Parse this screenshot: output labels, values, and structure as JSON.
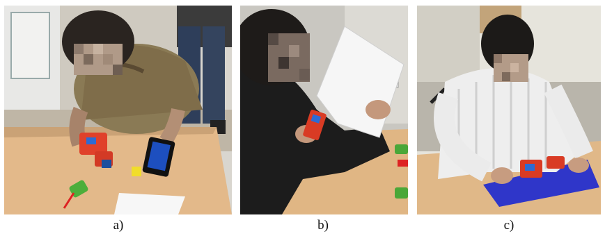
{
  "figure": {
    "panels": [
      {
        "caption": "a)"
      },
      {
        "caption": "b)"
      },
      {
        "caption": "c)"
      }
    ]
  }
}
